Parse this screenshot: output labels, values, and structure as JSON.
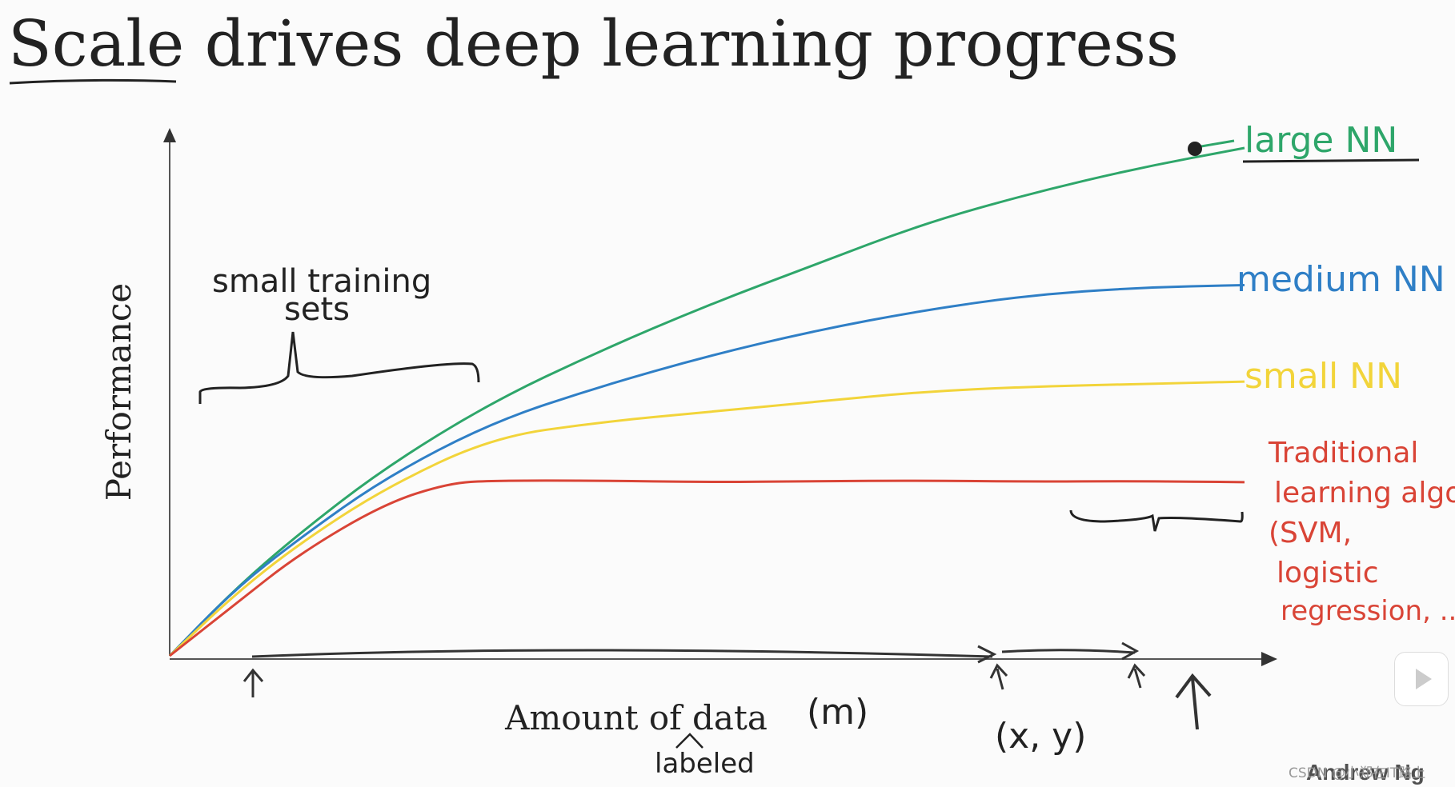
{
  "chart_data": {
    "type": "line",
    "title": "Scale drives deep learning progress",
    "xlabel": "Amount of data",
    "ylabel": "Performance",
    "xlim": [
      0,
      10
    ],
    "ylim": [
      0,
      10
    ],
    "series": [
      {
        "name": "large NN",
        "color": "#2ea66a",
        "x": [
          0,
          0.6,
          1.2,
          2.0,
          3.0,
          4.0,
          5.0,
          6.0,
          7.0,
          8.0,
          9.0,
          10.0
        ],
        "y": [
          0,
          1.3,
          2.4,
          3.7,
          5.0,
          6.0,
          6.9,
          7.7,
          8.5,
          9.1,
          9.6,
          10.0
        ]
      },
      {
        "name": "medium NN",
        "color": "#2f7fc6",
        "x": [
          0,
          0.6,
          1.2,
          2.0,
          3.0,
          4.0,
          5.0,
          6.0,
          7.0,
          8.0,
          9.0,
          10.0
        ],
        "y": [
          0,
          1.3,
          2.3,
          3.5,
          4.6,
          5.3,
          5.9,
          6.4,
          6.8,
          7.1,
          7.25,
          7.3
        ]
      },
      {
        "name": "small NN",
        "color": "#f2d43a",
        "x": [
          0,
          0.6,
          1.2,
          2.0,
          3.0,
          4.0,
          5.0,
          6.0,
          7.0,
          8.0,
          9.0,
          10.0
        ],
        "y": [
          0,
          1.2,
          2.2,
          3.3,
          4.3,
          4.6,
          4.8,
          5.0,
          5.2,
          5.3,
          5.35,
          5.4
        ]
      },
      {
        "name": "Traditional learning algo (SVM, logistic regression, ...)",
        "color": "#d94436",
        "x": [
          0,
          0.6,
          1.2,
          2.0,
          2.6,
          3.0,
          4.0,
          5.0,
          6.0,
          7.0,
          8.0,
          9.0,
          10.0
        ],
        "y": [
          0,
          1.0,
          2.0,
          3.0,
          3.4,
          3.45,
          3.45,
          3.42,
          3.44,
          3.45,
          3.43,
          3.44,
          3.42
        ]
      }
    ],
    "grid": false,
    "legend": "right"
  },
  "annotations": {
    "small_training_sets_line1": "small training",
    "small_training_sets_line2": "sets",
    "m": "(m)",
    "labeled": "labeled",
    "xy": "(x, y)"
  },
  "legend_labels": {
    "large": "large NN",
    "medium": "medium NN",
    "small": "small NN",
    "trad_1": "Traditional",
    "trad_2": "learning algo",
    "trad_3": "(SVM,",
    "trad_4": "logistic",
    "trad_5": "regression, ...)"
  },
  "credit": "Andrew Ng",
  "watermark": "CSDN @小郑在IT路上",
  "colors": {
    "axis": "#555555",
    "ink": "#222222"
  }
}
